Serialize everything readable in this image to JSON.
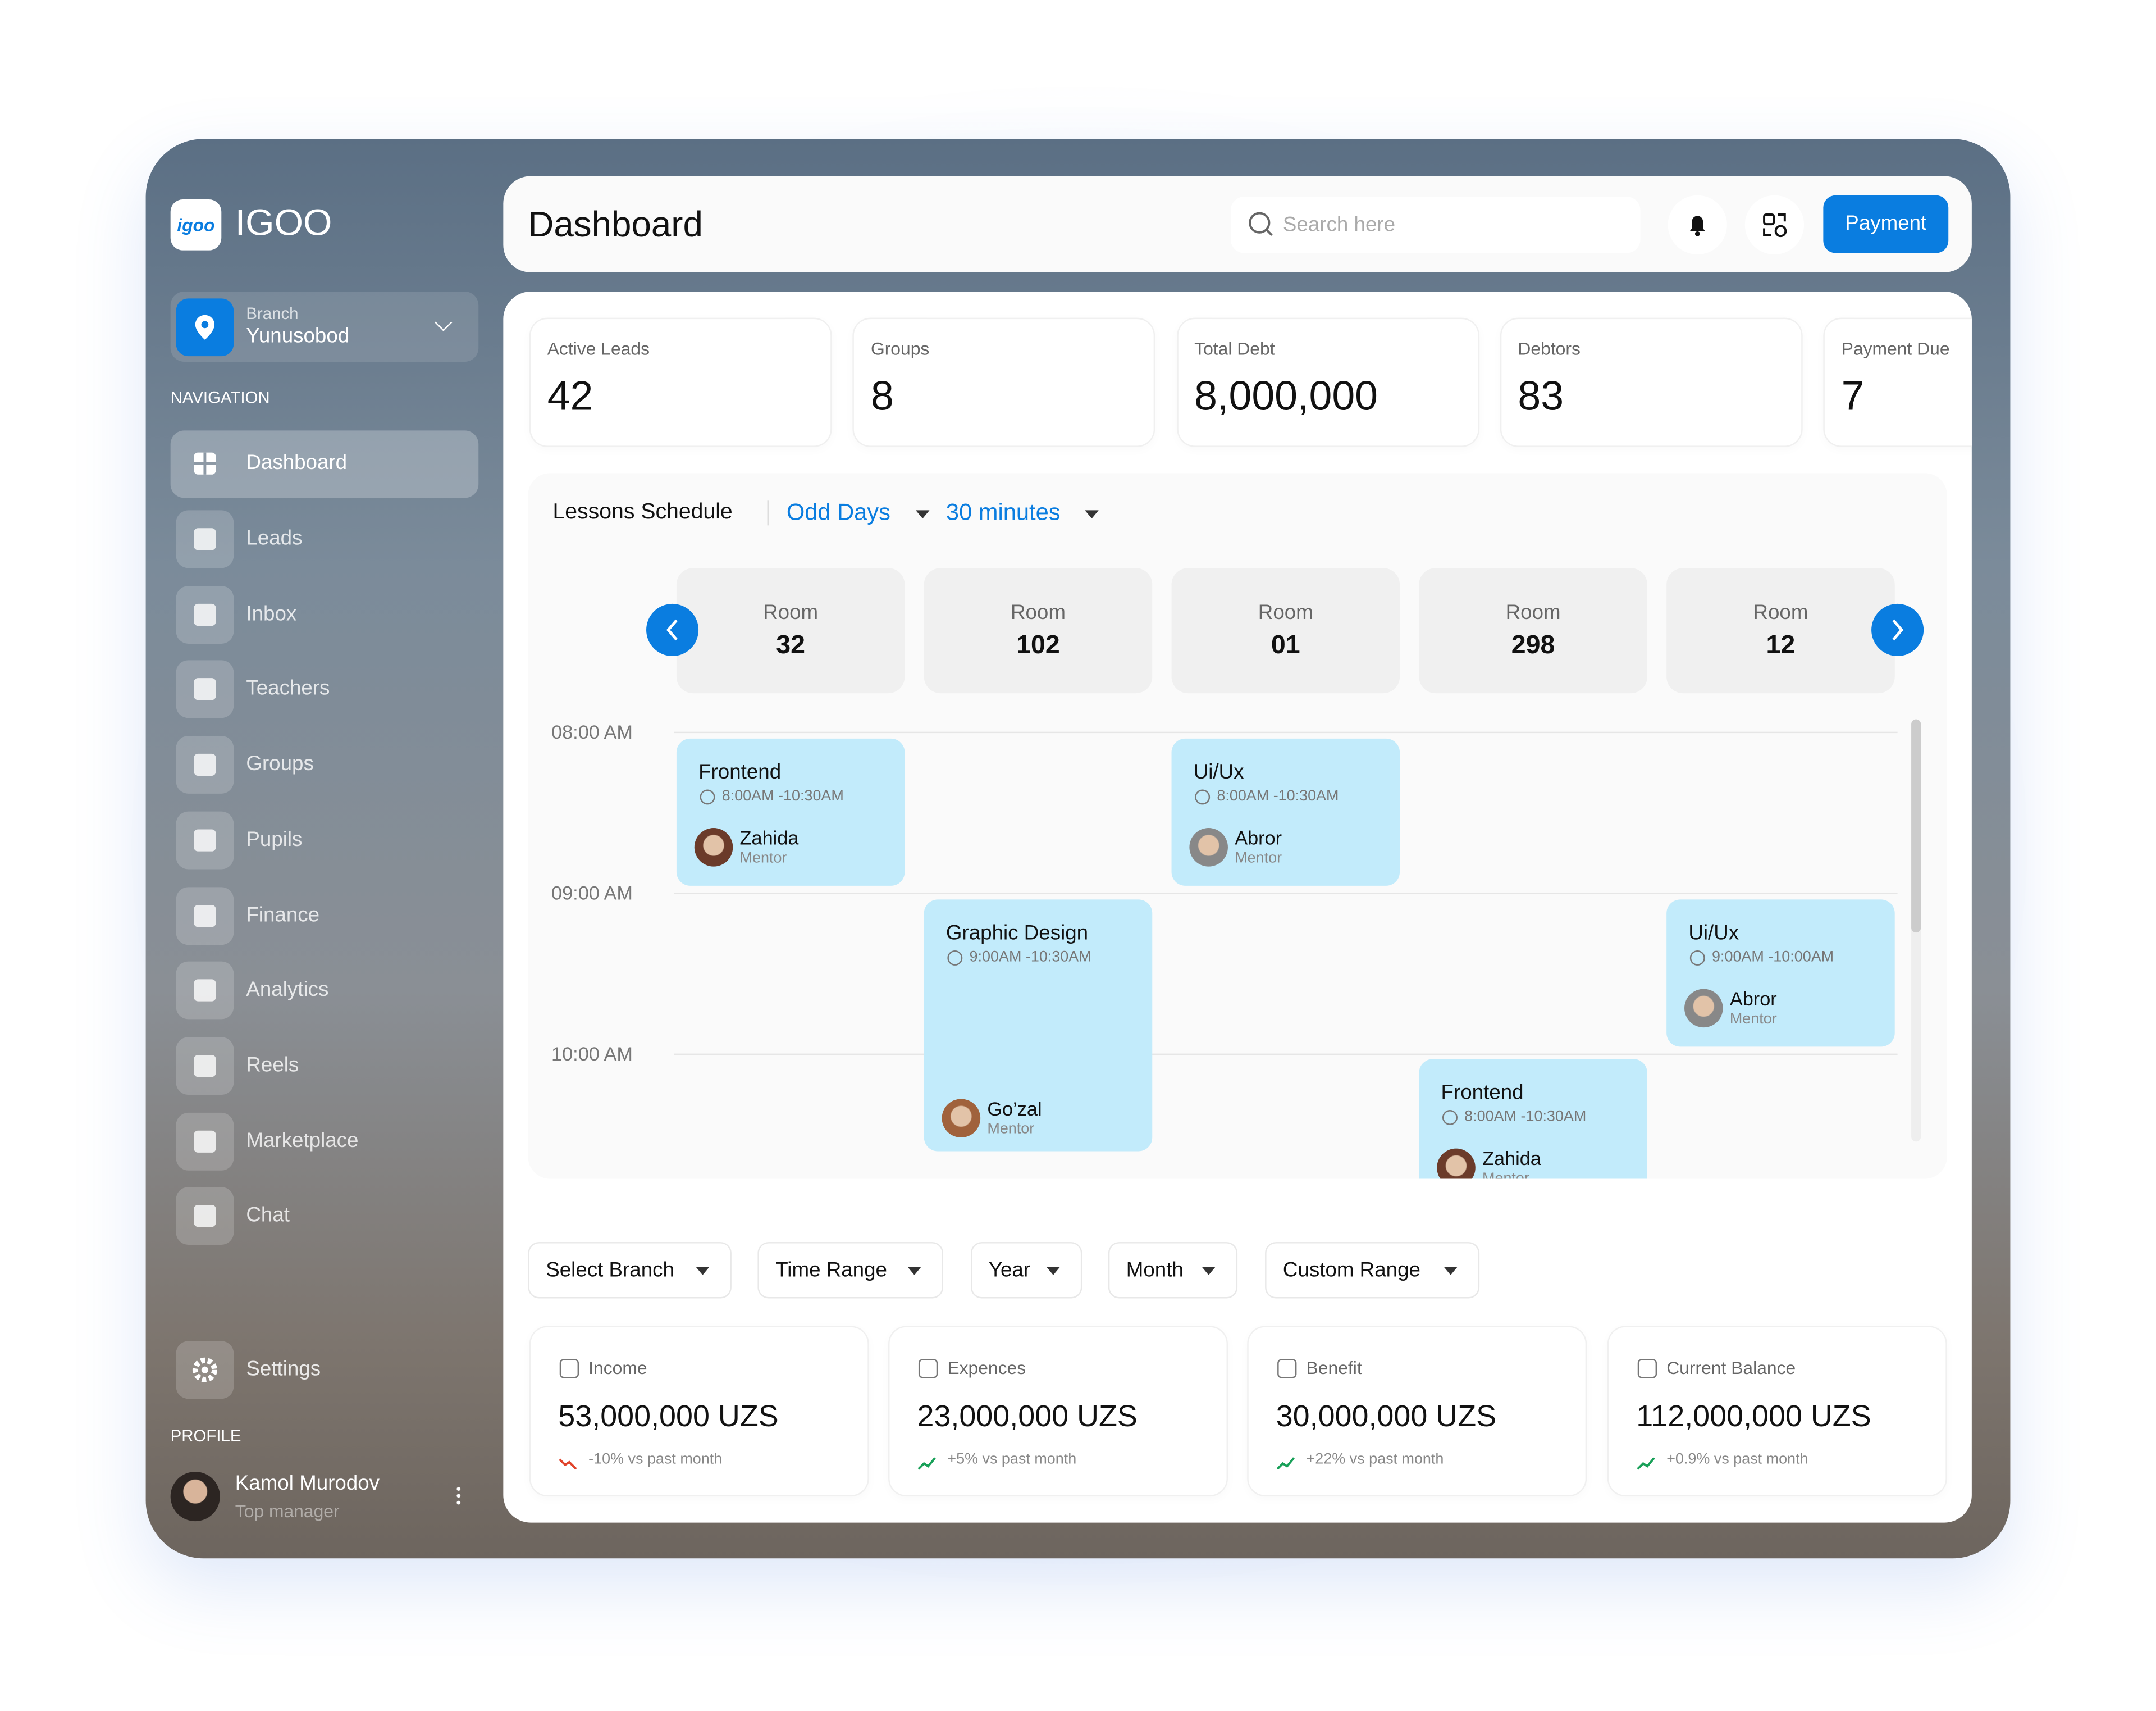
{
  "logo": "igoo",
  "brand": "IGOO",
  "branch": {
    "label": "Branch",
    "name": "Yunusobod"
  },
  "navigation": {
    "title": "NAVIGATION",
    "items": [
      "Dashboard",
      "Leads",
      "Inbox",
      "Teachers",
      "Groups",
      "Pupils",
      "Finance",
      "Analytics",
      "Reels",
      "Marketplace",
      "Chat"
    ]
  },
  "settings": "Settings",
  "profile": {
    "title": "PROFILE",
    "name": "Kamol Murodov",
    "role": "Top manager"
  },
  "header": {
    "title": "Dashboard",
    "search_placeholder": "Search here",
    "payment_button": "Payment"
  },
  "stats": [
    {
      "label": "Active Leads",
      "value": "42"
    },
    {
      "label": "Groups",
      "value": "8"
    },
    {
      "label": "Total Debt",
      "value": "8,000,000"
    },
    {
      "label": "Debtors",
      "value": "83"
    },
    {
      "label": "Payment Due",
      "value": "7"
    }
  ],
  "schedule": {
    "title": "Lessons Schedule",
    "days": "Odd Days",
    "interval": "30 minutes",
    "rooms": [
      {
        "label": "Room",
        "number": "32"
      },
      {
        "label": "Room",
        "number": "102"
      },
      {
        "label": "Room",
        "number": "01"
      },
      {
        "label": "Room",
        "number": "298"
      },
      {
        "label": "Room",
        "number": "12"
      }
    ],
    "times": [
      "08:00 AM",
      "09:00 AM",
      "10:00 AM"
    ],
    "lessons": [
      {
        "title": "Frontend",
        "time": "8:00AM -10:30AM",
        "mentor": "Zahida",
        "role": "Mentor"
      },
      {
        "title": "Ui/Ux",
        "time": "8:00AM -10:30AM",
        "mentor": "Abror",
        "role": "Mentor"
      },
      {
        "title": "Graphic Design",
        "time": "9:00AM -10:30AM",
        "mentor": "Go’zal",
        "role": "Mentor"
      },
      {
        "title": "Ui/Ux",
        "time": "9:00AM -10:00AM",
        "mentor": "Abror",
        "role": "Mentor"
      },
      {
        "title": "Frontend",
        "time": "8:00AM -10:30AM",
        "mentor": "Zahida",
        "role": "Mentor"
      }
    ]
  },
  "filters": [
    "Select Branch",
    "Time Range",
    "Year",
    "Month",
    "Custom Range"
  ],
  "finance": [
    {
      "label": "Income",
      "value": "53,000,000 UZS",
      "change": "-10% vs past month"
    },
    {
      "label": "Expences",
      "value": "23,000,000 UZS",
      "change": "+5% vs past month"
    },
    {
      "label": "Benefit",
      "value": "30,000,000 UZS",
      "change": "+22% vs past month"
    },
    {
      "label": "Current Balance",
      "value": "112,000,000 UZS",
      "change": "+0.9% vs past month"
    }
  ]
}
